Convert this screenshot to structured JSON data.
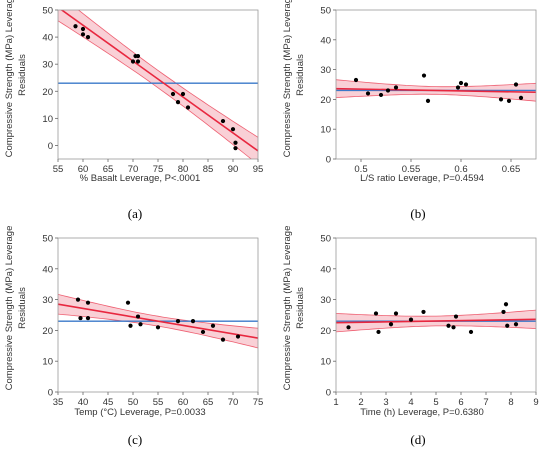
{
  "chart_data": [
    {
      "type": "scatter",
      "panel_label": "(a)",
      "xlabel": "% Basalt Leverage, P<.0001",
      "ylabel": "Compressive Strength (MPa) Leverage",
      "ylabel2": "Residuals",
      "xlim": [
        55,
        95
      ],
      "ylim": [
        -5,
        50
      ],
      "xticks": [
        55,
        60,
        65,
        70,
        75,
        80,
        85,
        90,
        95
      ],
      "yticks": [
        0,
        10,
        20,
        30,
        40,
        50
      ],
      "mean_line": 23,
      "fit": {
        "x": [
          55,
          95
        ],
        "y": [
          51,
          -2
        ]
      },
      "ci_half_width": {
        "center": 3.2,
        "edge": 5.0
      },
      "points": {
        "x": [
          58.5,
          60,
          60,
          61,
          70,
          70.5,
          71,
          71,
          78,
          79,
          80,
          81,
          88,
          90,
          90.5,
          90.5
        ],
        "y": [
          44,
          43,
          41,
          40,
          31,
          33,
          33,
          31,
          19,
          16,
          19,
          14,
          9,
          6,
          1,
          -1
        ]
      },
      "colors": {
        "fit": "#e8273f",
        "band": "#f4a9b4",
        "mean": "#3a78c9",
        "point": "#000000"
      }
    },
    {
      "type": "scatter",
      "panel_label": "(b)",
      "xlabel": "L/S ratio Leverage, P=0.4594",
      "ylabel": "Compressive Strength (MPa) Leverage",
      "ylabel2": "Residuals",
      "xlim": [
        0.475,
        0.675
      ],
      "ylim": [
        0,
        50
      ],
      "xticks": [
        0.5,
        0.55,
        0.6,
        0.65
      ],
      "xtick_labels": [
        "0.5",
        "0.55",
        "0.6",
        "0.65"
      ],
      "yticks": [
        0,
        10,
        20,
        30,
        40,
        50
      ],
      "mean_line": 23,
      "fit": {
        "x": [
          0.475,
          0.675
        ],
        "y": [
          23.6,
          22.4
        ]
      },
      "ci_half_width": {
        "center": 1.3,
        "edge": 3.0
      },
      "points": {
        "x": [
          0.495,
          0.507,
          0.52,
          0.527,
          0.535,
          0.563,
          0.567,
          0.597,
          0.6,
          0.605,
          0.64,
          0.648,
          0.655,
          0.66
        ],
        "y": [
          26.5,
          22,
          21.5,
          23,
          24,
          28,
          19.5,
          24,
          25.5,
          25,
          20,
          19.5,
          25,
          20.5
        ]
      },
      "colors": {
        "fit": "#e8273f",
        "band": "#f4a9b4",
        "mean": "#3a78c9",
        "point": "#000000"
      }
    },
    {
      "type": "scatter",
      "panel_label": "(c)",
      "xlabel": "Temp (°C) Leverage, P=0.0033",
      "ylabel": "Compressive Strength (MPa) Leverage",
      "ylabel2": "Residuals",
      "xlim": [
        35,
        75
      ],
      "ylim": [
        0,
        50
      ],
      "xticks": [
        35,
        40,
        45,
        50,
        55,
        60,
        65,
        70,
        75
      ],
      "yticks": [
        0,
        10,
        20,
        30,
        40,
        50
      ],
      "mean_line": 23,
      "fit": {
        "x": [
          35,
          75
        ],
        "y": [
          28.5,
          17.5
        ]
      },
      "ci_half_width": {
        "center": 1.6,
        "edge": 3.2
      },
      "points": {
        "x": [
          39,
          39.5,
          41,
          41,
          49,
          49.5,
          51,
          51.5,
          55,
          59,
          62,
          64,
          66,
          68,
          71
        ],
        "y": [
          30,
          24,
          24,
          29,
          29,
          21.5,
          24.5,
          22,
          21,
          23,
          23,
          19.5,
          21.5,
          17,
          18
        ]
      },
      "colors": {
        "fit": "#e8273f",
        "band": "#f4a9b4",
        "mean": "#3a78c9",
        "point": "#000000"
      }
    },
    {
      "type": "scatter",
      "panel_label": "(d)",
      "xlabel": "Time (h) Leverage, P=0.6380",
      "ylabel": "Compressive Strength (MPa) Leverage",
      "ylabel2": "Residuals",
      "xlim": [
        1,
        9
      ],
      "ylim": [
        0,
        50
      ],
      "xticks": [
        1,
        2,
        3,
        4,
        5,
        6,
        7,
        8,
        9
      ],
      "yticks": [
        0,
        10,
        20,
        30,
        40,
        50
      ],
      "mean_line": 23,
      "fit": {
        "x": [
          1,
          9
        ],
        "y": [
          22.5,
          23.6
        ]
      },
      "ci_half_width": {
        "center": 1.6,
        "edge": 3.0
      },
      "points": {
        "x": [
          1.5,
          2.6,
          2.7,
          3.2,
          3.4,
          4.0,
          4.5,
          5.5,
          5.7,
          5.8,
          6.4,
          7.7,
          7.8,
          7.85,
          8.2
        ],
        "y": [
          21,
          25.5,
          19.5,
          22,
          25.5,
          23.5,
          26,
          21.5,
          21,
          24.5,
          19.5,
          26,
          28.5,
          21.5,
          22
        ]
      },
      "colors": {
        "fit": "#e8273f",
        "band": "#f4a9b4",
        "mean": "#3a78c9",
        "point": "#000000"
      }
    }
  ]
}
